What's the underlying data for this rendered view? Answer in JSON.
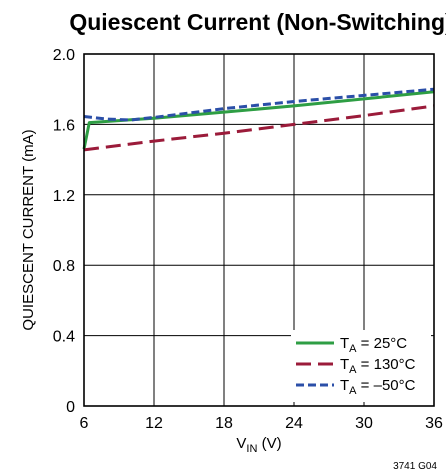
{
  "chart_data": {
    "type": "line",
    "title": "Quiescent Current (Non-Switching)",
    "xlabel": {
      "main": "V",
      "sub": "IN",
      "unit": " (V)"
    },
    "ylabel": "QUIESCENT CURRENT (mA)",
    "xlim": [
      6,
      36
    ],
    "ylim": [
      0,
      2.0
    ],
    "xticks": [
      "6",
      "12",
      "18",
      "24",
      "30",
      "36"
    ],
    "yticks": [
      "0",
      "0.4",
      "0.8",
      "1.2",
      "1.6",
      "2.0"
    ],
    "grid": true,
    "legend_position": "bottom-right",
    "figure_id": "3741 G04",
    "series": [
      {
        "name": "TA = 25°C",
        "legend": {
          "main": "T",
          "sub": "A",
          "rest": " = 25°C"
        },
        "color": "#2e9e44",
        "dash": "solid",
        "x": [
          6,
          6.45,
          12,
          18,
          24,
          30,
          36
        ],
        "y": [
          1.46,
          1.61,
          1.635,
          1.67,
          1.705,
          1.745,
          1.785
        ]
      },
      {
        "name": "TA = 130°C",
        "legend": {
          "main": "T",
          "sub": "A",
          "rest": " = 130°C"
        },
        "color": "#9b1b3a",
        "dash": "long",
        "x": [
          6,
          12,
          18,
          24,
          30,
          36
        ],
        "y": [
          1.455,
          1.505,
          1.55,
          1.6,
          1.65,
          1.705
        ]
      },
      {
        "name": "TA = -50°C",
        "legend": {
          "main": "T",
          "sub": "A",
          "rest": " = –50°C"
        },
        "color": "#2b4fa8",
        "dash": "short",
        "x": [
          6,
          8,
          10,
          12,
          18,
          24,
          30,
          36
        ],
        "y": [
          1.645,
          1.63,
          1.625,
          1.64,
          1.69,
          1.73,
          1.765,
          1.8
        ]
      }
    ]
  }
}
